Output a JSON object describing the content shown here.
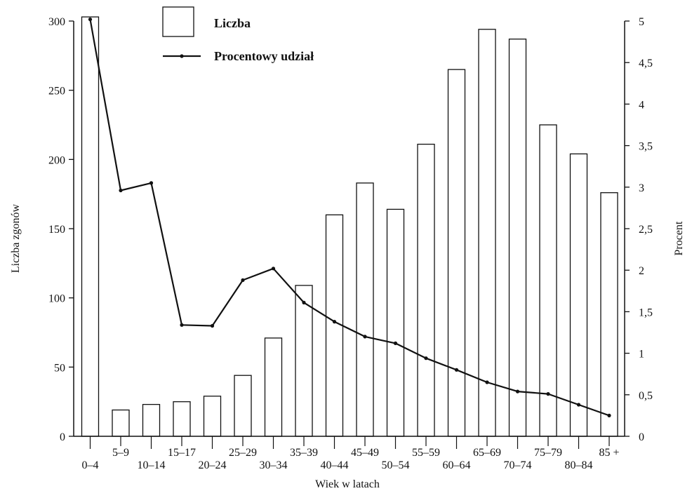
{
  "chart_data": {
    "type": "bar",
    "categories": [
      "0–4",
      "5–9",
      "10–14",
      "15–17",
      "20–24",
      "25–29",
      "30–34",
      "35–39",
      "40–44",
      "45–49",
      "50–54",
      "55–59",
      "60–64",
      "65–69",
      "70–74",
      "75–79",
      "80–84",
      "85 +"
    ],
    "xlabel": "Wiek w latach",
    "ylabel": "Liczba zgonów",
    "y2label": "Procent",
    "ylim": [
      0,
      300
    ],
    "y2lim": [
      0,
      5
    ],
    "yticks": [
      0,
      50,
      100,
      150,
      200,
      250,
      300
    ],
    "y2ticks": [
      "0",
      "0,5",
      "1",
      "1,5",
      "2",
      "2,5",
      "3",
      "3,5",
      "4",
      "4,5",
      "5"
    ],
    "legend_position": "top-center",
    "grid": false,
    "series": [
      {
        "name": "Liczba",
        "type": "bar",
        "axis": "left",
        "values": [
          303,
          19,
          23,
          25,
          29,
          44,
          71,
          109,
          160,
          183,
          164,
          211,
          265,
          294,
          287,
          225,
          204,
          176
        ]
      },
      {
        "name": "Procentowy udział",
        "type": "line",
        "axis": "right",
        "values": [
          5.02,
          2.96,
          3.05,
          1.34,
          1.33,
          1.88,
          2.02,
          1.61,
          1.38,
          1.2,
          1.12,
          0.94,
          0.8,
          0.65,
          0.54,
          0.51,
          0.38,
          0.25
        ]
      }
    ]
  }
}
